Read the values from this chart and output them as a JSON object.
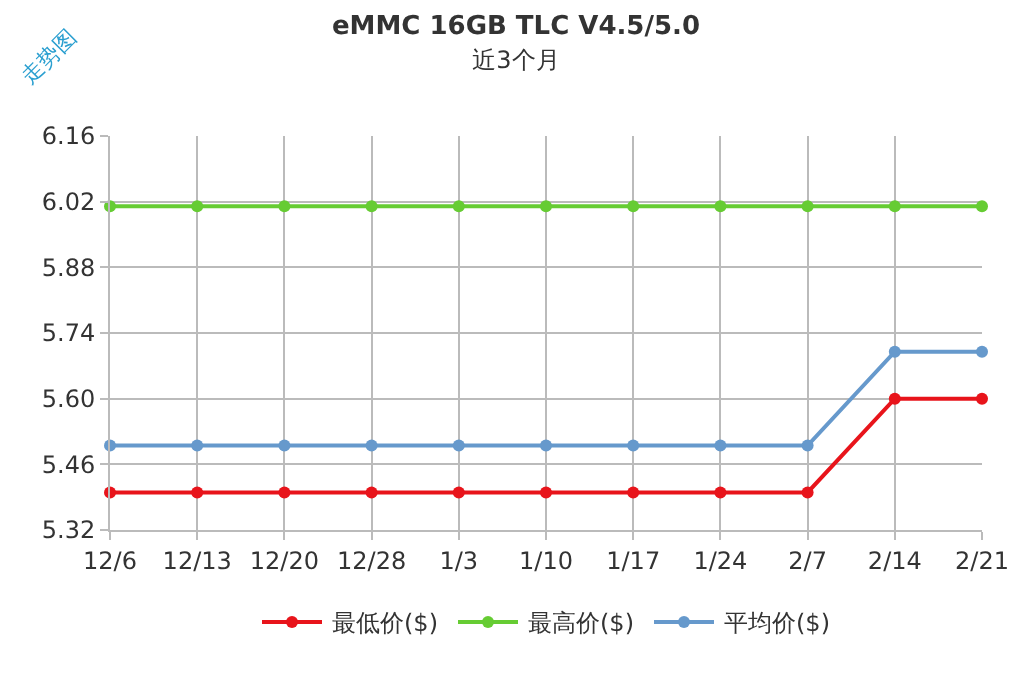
{
  "chart_data": {
    "type": "line",
    "title": "eMMC 16GB TLC V4.5/5.0",
    "subtitle": "近3个月",
    "annotations": [
      "走势图"
    ],
    "categories": [
      "12/6",
      "12/13",
      "12/20",
      "12/28",
      "1/3",
      "1/10",
      "1/17",
      "1/24",
      "2/7",
      "2/14",
      "2/21"
    ],
    "series": [
      {
        "name": "最低价($)",
        "color": "#e8141b",
        "values": [
          5.4,
          5.4,
          5.4,
          5.4,
          5.4,
          5.4,
          5.4,
          5.4,
          5.4,
          5.6,
          5.6
        ]
      },
      {
        "name": "最高价($)",
        "color": "#66cc33",
        "values": [
          6.01,
          6.01,
          6.01,
          6.01,
          6.01,
          6.01,
          6.01,
          6.01,
          6.01,
          6.01,
          6.01
        ]
      },
      {
        "name": "平均价($)",
        "color": "#6699cc",
        "values": [
          5.5,
          5.5,
          5.5,
          5.5,
          5.5,
          5.5,
          5.5,
          5.5,
          5.5,
          5.7,
          5.7
        ]
      }
    ],
    "ylim": [
      5.32,
      6.16
    ],
    "yticks": [
      {
        "value": 5.32,
        "label": "5.32"
      },
      {
        "value": 5.46,
        "label": "5.46"
      },
      {
        "value": 5.6,
        "label": "5.60"
      },
      {
        "value": 5.74,
        "label": "5.74"
      },
      {
        "value": 5.88,
        "label": "5.88"
      },
      {
        "value": 6.02,
        "label": "6.02"
      },
      {
        "value": 6.16,
        "label": "6.16"
      }
    ],
    "grid": true,
    "legend": "bottom",
    "marker": "circle",
    "line_style": "solid"
  }
}
